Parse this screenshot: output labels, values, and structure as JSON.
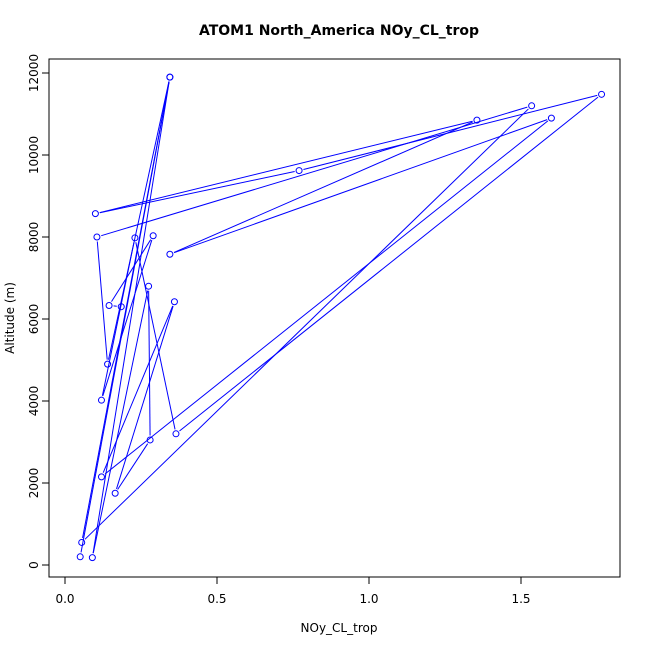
{
  "chart_data": {
    "type": "line",
    "title": "ATOM1 North_America NOy_CL_trop",
    "xlabel": "NOy_CL_trop",
    "ylabel": "Altitude (m)",
    "xlim": [
      0,
      1.8
    ],
    "ylim": [
      0,
      12000
    ],
    "x_ticks": [
      0,
      0.5,
      1,
      1.5
    ],
    "x_tick_labels": [
      "0.0",
      "0.5",
      "1.0",
      "1.5"
    ],
    "y_ticks": [
      0,
      2000,
      4000,
      6000,
      8000,
      10000,
      12000
    ],
    "y_tick_labels": [
      "0",
      "2000",
      "4000",
      "6000",
      "8000",
      "10000",
      "12000"
    ],
    "grid": false,
    "legend": "none",
    "series": [
      {
        "color": "#0000ff",
        "marker": "open-circle",
        "line_style": "gap-segments",
        "points": [
          {
            "x": 0.05,
            "y": 200
          },
          {
            "x": 0.345,
            "y": 11900
          },
          {
            "x": 0.055,
            "y": 550
          },
          {
            "x": 1.535,
            "y": 11200
          },
          {
            "x": 0.105,
            "y": 8000
          },
          {
            "x": 0.14,
            "y": 4900
          },
          {
            "x": 0.345,
            "y": 11900
          },
          {
            "x": 0.09,
            "y": 180
          },
          {
            "x": 0.275,
            "y": 6800
          },
          {
            "x": 0.28,
            "y": 3050
          },
          {
            "x": 0.165,
            "y": 1750
          },
          {
            "x": 0.36,
            "y": 6420
          },
          {
            "x": 0.12,
            "y": 2150
          },
          {
            "x": 1.6,
            "y": 10900
          },
          {
            "x": 0.345,
            "y": 7580
          },
          {
            "x": 1.355,
            "y": 10850
          },
          {
            "x": 0.1,
            "y": 8570
          },
          {
            "x": 0.77,
            "y": 9620
          },
          {
            "x": 1.765,
            "y": 11480
          },
          {
            "x": 0.365,
            "y": 3200
          },
          {
            "x": 0.23,
            "y": 7980
          },
          {
            "x": 0.12,
            "y": 4020
          },
          {
            "x": 0.29,
            "y": 8030
          },
          {
            "x": 0.145,
            "y": 6330
          },
          {
            "x": 0.185,
            "y": 6300
          }
        ]
      }
    ]
  }
}
